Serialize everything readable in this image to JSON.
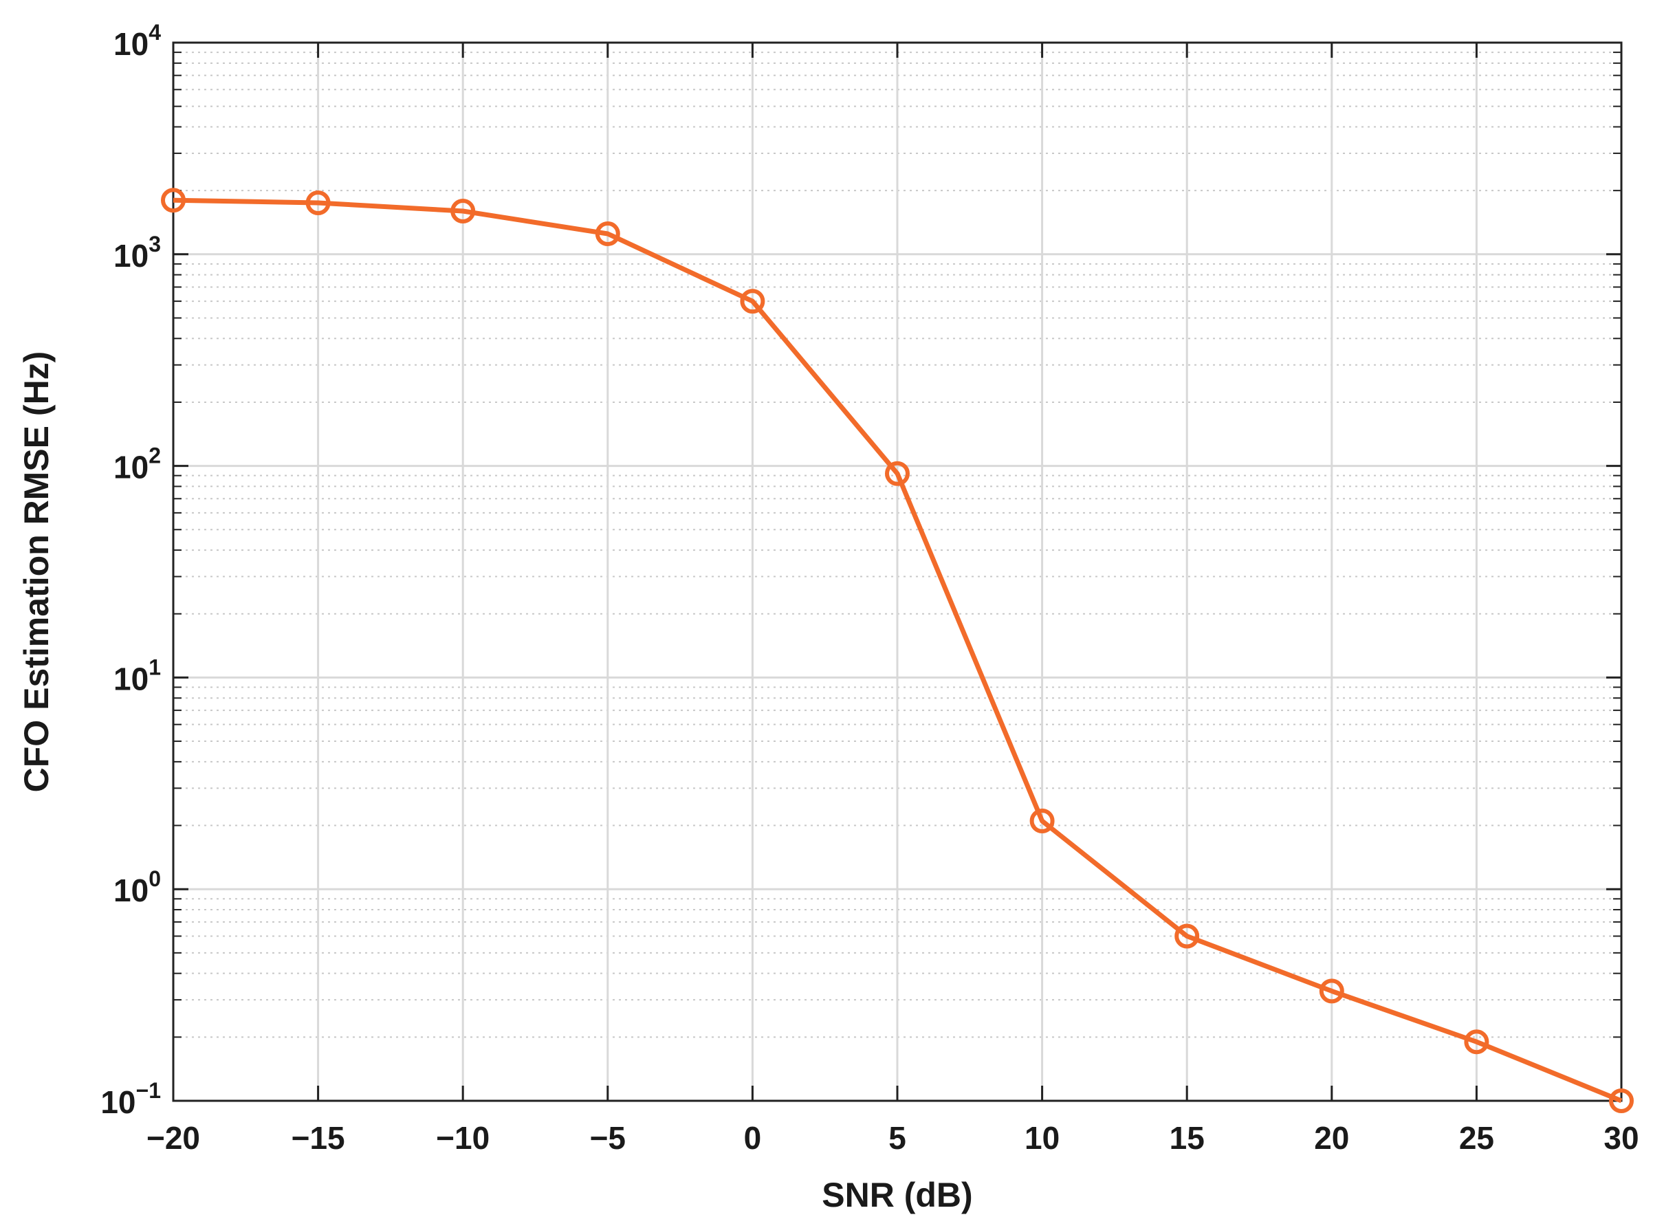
{
  "chart_data": {
    "type": "line",
    "xlabel": "SNR (dB)",
    "ylabel": "CFO Estimation RMSE (Hz)",
    "x": [
      -20,
      -15,
      -10,
      -5,
      0,
      5,
      10,
      15,
      20,
      25,
      30
    ],
    "series": [
      {
        "values": [
          1800,
          1750,
          1600,
          1250,
          600,
          92,
          2.1,
          0.6,
          0.33,
          0.19,
          0.1
        ],
        "color": "#f26b2a",
        "marker": "circle"
      }
    ],
    "xlim": [
      -20,
      30
    ],
    "ylim": [
      0.1,
      10000
    ],
    "yscale": "log",
    "grid": true,
    "minor_grid": true,
    "xticks": [
      "−20",
      "−15",
      "−10",
      "−5",
      "0",
      "5",
      "10",
      "15",
      "20",
      "25",
      "30"
    ],
    "yticks": [
      {
        "base": "10",
        "exp": "−1"
      },
      {
        "base": "10",
        "exp": "0"
      },
      {
        "base": "10",
        "exp": "1"
      },
      {
        "base": "10",
        "exp": "2"
      },
      {
        "base": "10",
        "exp": "3"
      },
      {
        "base": "10",
        "exp": "4"
      }
    ]
  }
}
